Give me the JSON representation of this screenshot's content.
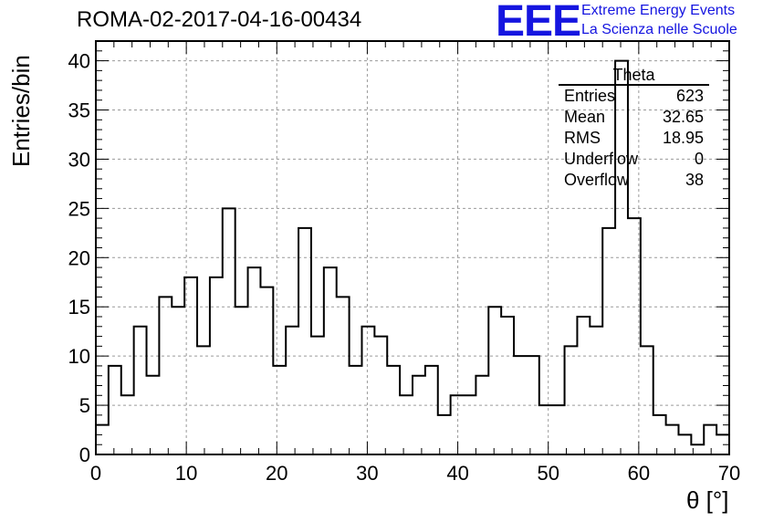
{
  "header": {
    "title": "ROMA-02-2017-04-16-00434",
    "logo_text": "EEE",
    "logo_line1": "Extreme Energy Events",
    "logo_line2": "La Scienza nelle Scuole"
  },
  "stats": {
    "title": "Theta",
    "rows": [
      {
        "label": "Entries",
        "value": "623"
      },
      {
        "label": "Mean",
        "value": "32.65"
      },
      {
        "label": "RMS",
        "value": "18.95"
      },
      {
        "label": "Underflow",
        "value": "0"
      },
      {
        "label": "Overflow",
        "value": "38"
      }
    ]
  },
  "colors": {
    "logo": "#1515e0",
    "line": "#000000",
    "grid": "#9a9a9a"
  },
  "chart_data": {
    "type": "bar",
    "style": "step-histogram",
    "xlabel": "θ [°]",
    "ylabel": "Entries/bin",
    "xlim": [
      0,
      70
    ],
    "ylim": [
      0,
      42
    ],
    "grid": true,
    "legend": "top-right statistics box",
    "x_ticks": [
      0,
      10,
      20,
      30,
      40,
      50,
      60,
      70
    ],
    "y_ticks": [
      0,
      5,
      10,
      15,
      20,
      25,
      30,
      35,
      40
    ],
    "bin_width": 1.4,
    "values": [
      3,
      9,
      6,
      13,
      8,
      16,
      15,
      18,
      11,
      18,
      25,
      15,
      19,
      17,
      9,
      13,
      23,
      12,
      19,
      16,
      9,
      13,
      12,
      9,
      6,
      8,
      9,
      4,
      6,
      6,
      8,
      15,
      14,
      10,
      10,
      5,
      5,
      11,
      14,
      13,
      23,
      40,
      24,
      11,
      4,
      3,
      2,
      1,
      3,
      2
    ]
  }
}
